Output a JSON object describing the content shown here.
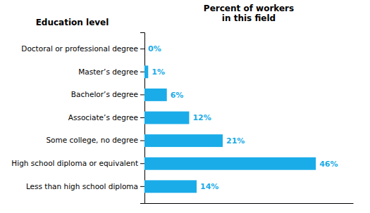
{
  "chart_data": {
    "type": "bar",
    "orientation": "horizontal",
    "y_label": "Education level",
    "x_label": "Percent of workers\nin this field",
    "categories": [
      "Doctoral or professional degree",
      "Master’s degree",
      "Bachelor’s degree",
      "Associate’s degree",
      "Some college, no degree",
      "High school diploma or equivalent",
      "Less than high school diploma"
    ],
    "values": [
      0,
      1,
      6,
      12,
      21,
      46,
      14
    ],
    "value_labels": [
      "0%",
      "1%",
      "6%",
      "12%",
      "21%",
      "46%",
      "14%"
    ],
    "data_labels": true,
    "color": "#1AACE8",
    "xlim": [
      0,
      56
    ],
    "tick_labels": "y",
    "grid": false
  }
}
